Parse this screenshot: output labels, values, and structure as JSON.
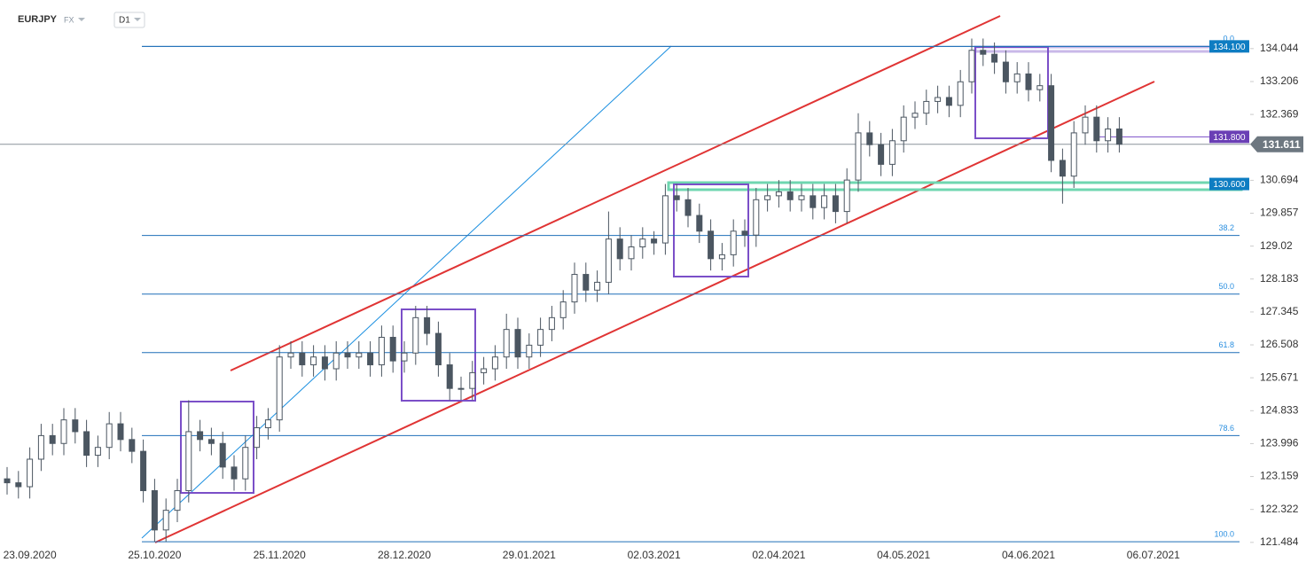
{
  "chart_data": {
    "type": "candlestick",
    "title": "EURJPY",
    "market": "FX",
    "interval": "D1",
    "categories": [
      null,
      null,
      "23.09.2020",
      null,
      null,
      null,
      null,
      null,
      null,
      null,
      null,
      null,
      null,
      "25.10.2020",
      null,
      null,
      null,
      null,
      null,
      null,
      null,
      null,
      null,
      null,
      "25.11.2020",
      null,
      null,
      null,
      null,
      null,
      null,
      null,
      null,
      null,
      null,
      "28.12.2020",
      null,
      null,
      null,
      null,
      null,
      null,
      null,
      null,
      null,
      null,
      "29.01.2021",
      null,
      null,
      null,
      null,
      null,
      null,
      null,
      null,
      null,
      null,
      "02.03.2021",
      null,
      null,
      null,
      null,
      null,
      null,
      null,
      null,
      null,
      null,
      "02.04.2021",
      null,
      null,
      null,
      null,
      null,
      null,
      null,
      null,
      null,
      null,
      "04.05.2021",
      null,
      null,
      null,
      null,
      null,
      null,
      null,
      null,
      null,
      null,
      "04.06.2021",
      null,
      null,
      null,
      null,
      null,
      null,
      null,
      null,
      null,
      null,
      "06.07.2021"
    ],
    "open": [
      123.1,
      123.0,
      122.9,
      123.6,
      124.2,
      124.0,
      124.6,
      124.3,
      123.7,
      123.9,
      124.5,
      124.1,
      123.8,
      122.8,
      121.8,
      122.3,
      122.8,
      124.3,
      124.1,
      124.0,
      123.4,
      123.1,
      123.9,
      124.4,
      124.6,
      126.2,
      126.3,
      126.0,
      126.2,
      125.9,
      126.3,
      126.2,
      126.3,
      126.0,
      126.7,
      126.1,
      126.3,
      127.2,
      126.8,
      126.0,
      125.4,
      125.4,
      125.8,
      125.9,
      126.2,
      126.9,
      126.2,
      126.5,
      126.9,
      127.2,
      127.6,
      128.3,
      127.9,
      128.1,
      129.2,
      128.7,
      129.0,
      129.2,
      129.1,
      130.3,
      130.2,
      129.8,
      129.4,
      128.7,
      128.8,
      129.4,
      129.3,
      130.2,
      130.3,
      130.4,
      130.2,
      130.3,
      130.0,
      130.3,
      129.9,
      130.7,
      131.9,
      131.6,
      131.1,
      131.7,
      132.3,
      132.4,
      132.7,
      132.8,
      132.6,
      133.2,
      134.0,
      133.9,
      133.7,
      133.2,
      133.4,
      133.0,
      133.1,
      131.2,
      130.8,
      131.9,
      132.3,
      131.7,
      132.0,
      null,
      null,
      null
    ],
    "high": [
      123.4,
      123.3,
      123.9,
      124.5,
      124.5,
      124.9,
      124.9,
      124.6,
      124.2,
      124.8,
      124.8,
      124.4,
      124.1,
      123.1,
      122.6,
      123.1,
      125.1,
      124.6,
      124.4,
      124.3,
      123.7,
      124.2,
      124.7,
      124.9,
      126.5,
      126.6,
      126.6,
      126.5,
      126.5,
      126.6,
      126.6,
      126.6,
      126.6,
      127.0,
      127.0,
      126.6,
      127.5,
      127.5,
      127.1,
      126.3,
      125.7,
      126.1,
      126.2,
      126.5,
      127.3,
      127.2,
      126.8,
      127.2,
      127.5,
      127.9,
      128.6,
      128.6,
      128.4,
      129.9,
      129.5,
      129.3,
      129.5,
      129.4,
      130.6,
      130.6,
      130.5,
      130.1,
      129.7,
      129.1,
      129.7,
      129.7,
      130.5,
      130.6,
      130.7,
      130.7,
      130.6,
      130.6,
      130.6,
      130.6,
      131.0,
      132.4,
      132.2,
      131.9,
      132.0,
      132.6,
      132.7,
      133.0,
      133.1,
      133.1,
      133.5,
      134.3,
      134.3,
      134.2,
      134.0,
      133.7,
      133.7,
      133.4,
      133.4,
      131.5,
      132.2,
      132.6,
      132.6,
      132.3,
      132.3,
      null,
      null,
      null
    ],
    "low": [
      122.7,
      122.6,
      122.6,
      123.3,
      123.7,
      123.7,
      124.0,
      123.4,
      123.4,
      123.6,
      123.8,
      123.5,
      122.5,
      121.5,
      121.5,
      122.0,
      122.5,
      123.8,
      123.7,
      123.1,
      122.8,
      122.8,
      123.6,
      124.1,
      124.3,
      125.9,
      125.7,
      125.7,
      125.6,
      125.6,
      125.9,
      125.9,
      125.7,
      125.7,
      125.8,
      125.8,
      126.0,
      126.5,
      125.7,
      125.1,
      125.1,
      125.1,
      125.5,
      125.6,
      125.9,
      125.9,
      125.9,
      126.2,
      126.6,
      126.9,
      127.3,
      127.6,
      127.6,
      127.8,
      128.4,
      128.4,
      128.7,
      128.8,
      128.8,
      129.9,
      129.5,
      129.1,
      128.4,
      128.4,
      128.5,
      129.0,
      129.0,
      129.9,
      130.0,
      129.9,
      129.9,
      129.7,
      129.7,
      129.6,
      129.6,
      130.4,
      131.3,
      130.8,
      130.8,
      131.4,
      132.0,
      132.1,
      132.4,
      132.3,
      132.3,
      132.9,
      133.6,
      133.4,
      132.9,
      132.9,
      132.7,
      132.7,
      130.9,
      130.1,
      130.5,
      131.6,
      131.4,
      131.4,
      131.4,
      null,
      null,
      null
    ],
    "close": [
      123.0,
      122.9,
      123.6,
      124.2,
      124.0,
      124.6,
      124.3,
      123.7,
      123.9,
      124.5,
      124.1,
      123.8,
      122.8,
      121.8,
      122.3,
      122.8,
      124.3,
      124.1,
      124.0,
      123.4,
      123.1,
      123.9,
      124.4,
      124.6,
      126.2,
      126.3,
      126.0,
      126.2,
      125.9,
      126.3,
      126.2,
      126.3,
      126.0,
      126.7,
      126.1,
      126.3,
      127.2,
      126.8,
      126.0,
      125.4,
      125.4,
      125.8,
      125.9,
      126.2,
      126.9,
      126.2,
      126.5,
      126.9,
      127.2,
      127.6,
      128.3,
      127.9,
      128.1,
      129.2,
      128.7,
      129.0,
      129.2,
      129.1,
      130.3,
      130.2,
      129.8,
      129.4,
      128.7,
      128.8,
      129.4,
      129.3,
      130.2,
      130.3,
      130.4,
      130.2,
      130.3,
      130.0,
      130.3,
      129.9,
      130.7,
      131.9,
      131.6,
      131.1,
      131.7,
      132.3,
      132.4,
      132.7,
      132.8,
      132.6,
      133.2,
      134.0,
      133.9,
      133.7,
      133.2,
      133.4,
      133.0,
      133.1,
      131.2,
      130.8,
      131.9,
      132.3,
      131.7,
      132.0,
      131.611,
      null,
      null,
      null
    ],
    "up_color": "#ffffff",
    "down_color": "#4b5661",
    "ylim": [
      121.3,
      135.28
    ],
    "yticks": [
      134.044,
      133.206,
      132.369,
      130.694,
      129.857,
      129.02,
      128.183,
      127.345,
      126.508,
      125.671,
      124.833,
      123.996,
      123.159,
      122.322,
      121.484
    ],
    "fib_levels": [
      {
        "value": 134.1,
        "label": "0.0"
      },
      {
        "value": 129.29,
        "label": "38.2"
      },
      {
        "value": 127.8,
        "label": "50.0"
      },
      {
        "value": 126.31,
        "label": "61.8"
      },
      {
        "value": 124.2,
        "label": "78.6"
      },
      {
        "value": 121.5,
        "label": "100.0"
      }
    ],
    "levels": [
      {
        "value": 134.1,
        "label": "134.100",
        "color": "#0e7dc2"
      },
      {
        "value": 131.8,
        "label": "131.800",
        "color": "#6a3fb5"
      },
      {
        "value": 130.6,
        "label": "130.600",
        "color": "#0e7dc2"
      }
    ],
    "last_price": 131.611
  }
}
